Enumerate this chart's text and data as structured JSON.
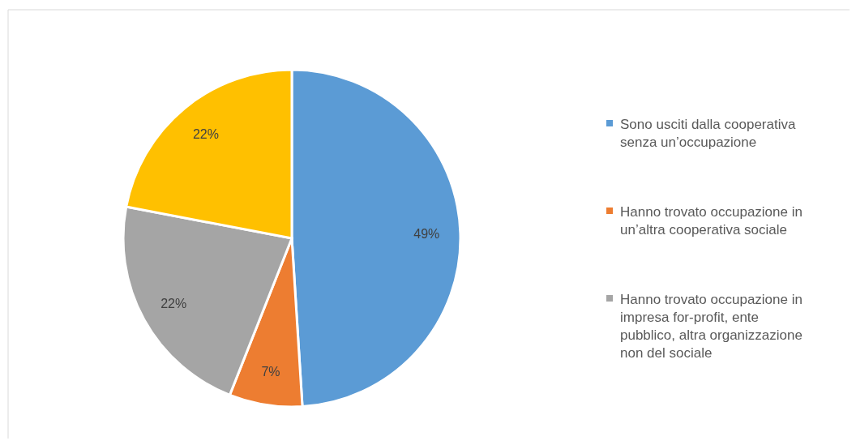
{
  "chart_data": {
    "type": "pie",
    "categories": [
      "Sono usciti dalla cooperativa senza un’occupazione",
      "Hanno trovato occupazione in un’altra cooperativa sociale",
      "Hanno trovato occupazione in impresa for-profit, ente pubblico, altra organizzazione non del sociale",
      null
    ],
    "values": [
      49,
      7,
      22,
      22
    ],
    "colors": [
      "#5b9bd5",
      "#ed7d31",
      "#a5a5a5",
      "#ffc000"
    ],
    "value_labels": [
      "49%",
      "7%",
      "22%",
      "22%"
    ],
    "legend": "right"
  }
}
